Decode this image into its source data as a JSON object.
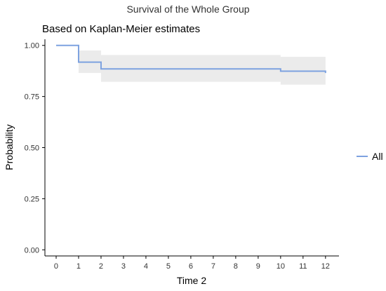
{
  "chart_data": {
    "type": "line",
    "title": "Survival of the Whole Group",
    "subtitle": "Based on Kaplan-Meier estimates",
    "xlabel": "Time 2",
    "ylabel": "Probability",
    "xlim": [
      -0.5,
      12.6
    ],
    "ylim": [
      -0.03,
      1.03
    ],
    "xticks": [
      0,
      1,
      2,
      3,
      4,
      5,
      6,
      7,
      8,
      9,
      10,
      11,
      12
    ],
    "yticks": [
      0.0,
      0.25,
      0.5,
      0.75,
      1.0
    ],
    "ytick_labels": [
      "0.00",
      "0.25",
      "0.50",
      "0.75",
      "1.00"
    ],
    "grid": false,
    "legend_position": "right",
    "series": [
      {
        "name": "All",
        "color": "#7da2e0",
        "step": [
          {
            "x": 0,
            "y": 1.0
          },
          {
            "x": 1,
            "y": 0.918
          },
          {
            "x": 2,
            "y": 0.885
          },
          {
            "x": 10,
            "y": 0.874
          },
          {
            "x": 12,
            "y": 0.865
          }
        ],
        "x_end": 12,
        "ci": [
          {
            "x": 1,
            "lower": 0.865,
            "upper": 0.975
          },
          {
            "x": 2,
            "lower": 0.822,
            "upper": 0.953
          },
          {
            "x": 10,
            "lower": 0.808,
            "upper": 0.944
          }
        ],
        "ci_color": "#ebebeb"
      }
    ]
  }
}
